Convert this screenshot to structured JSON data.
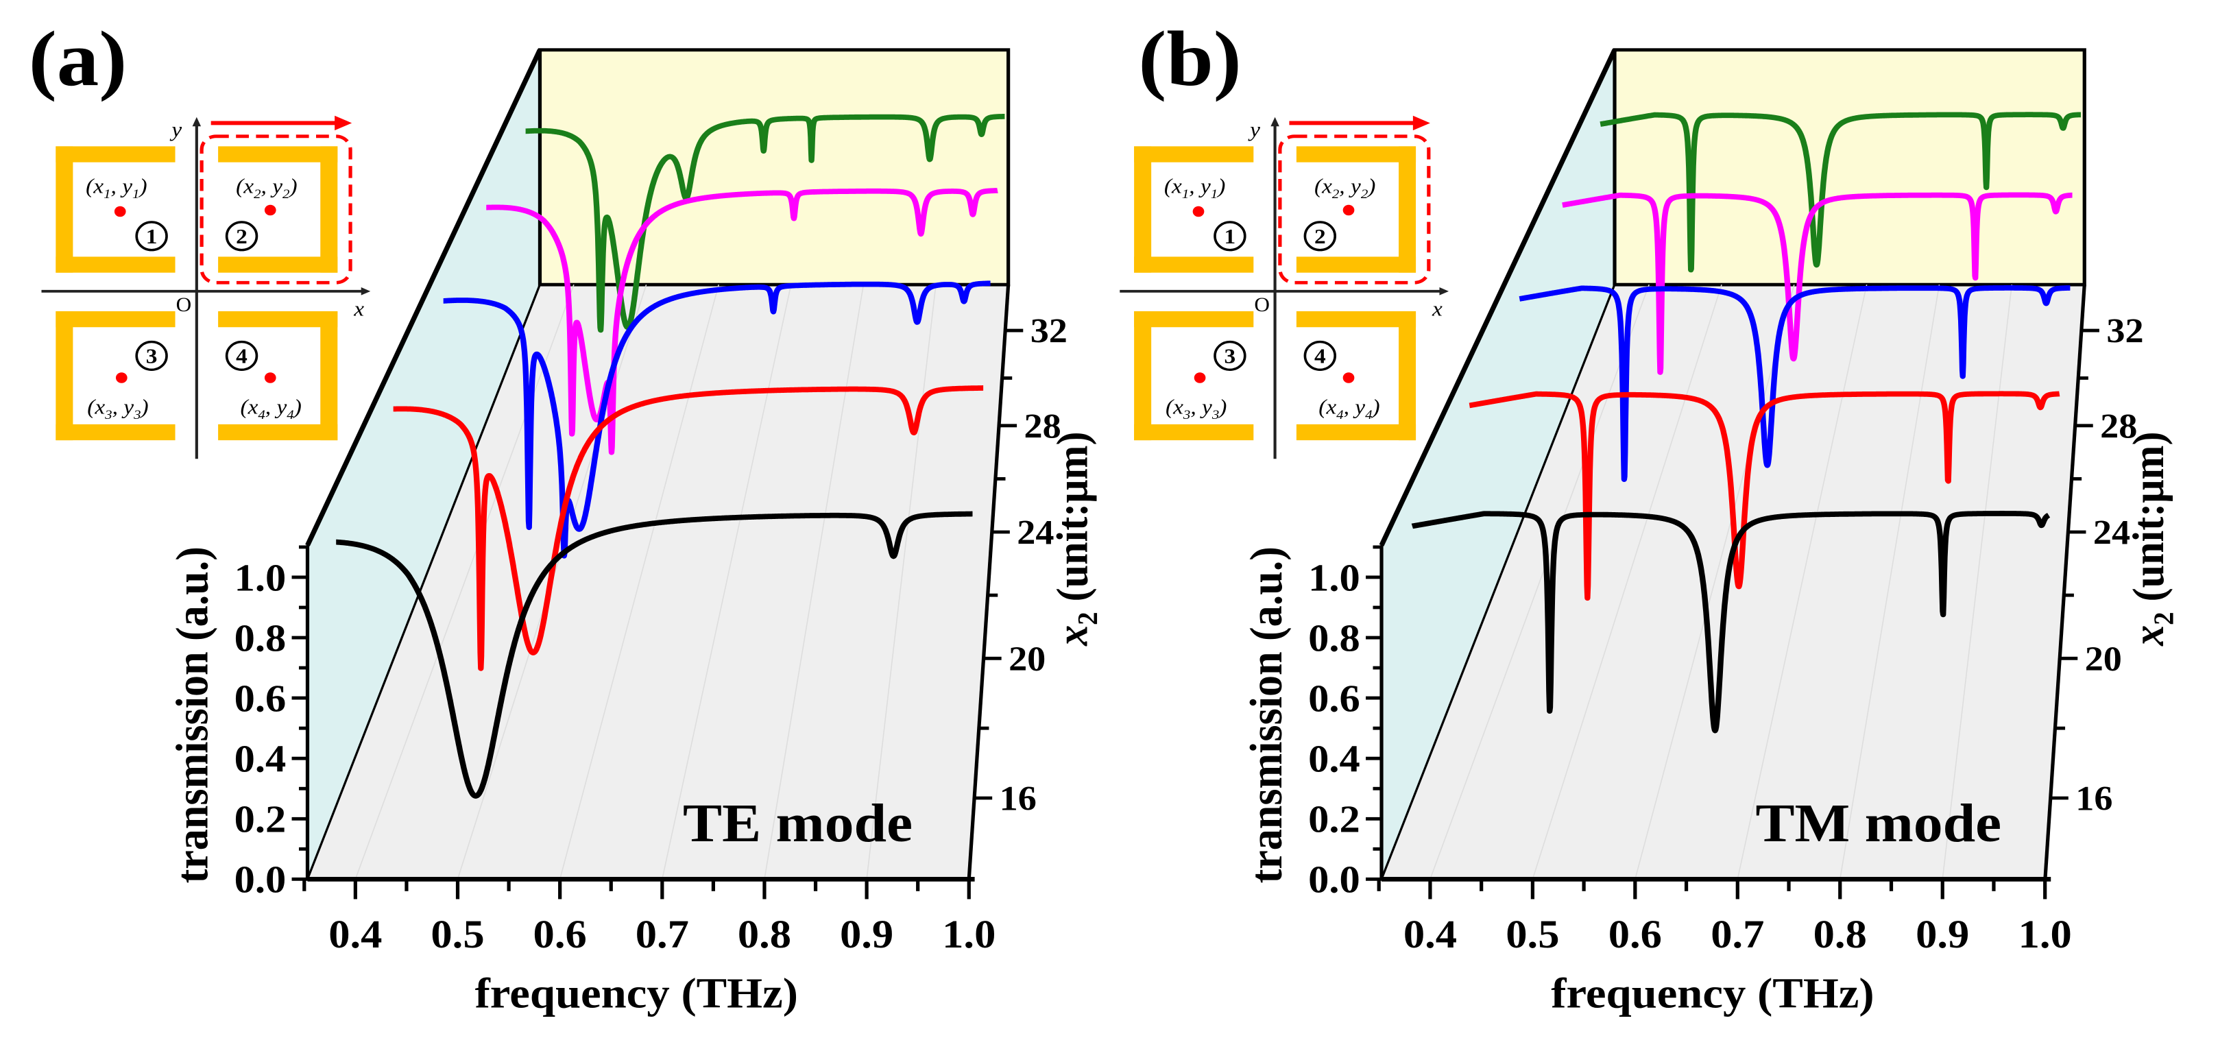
{
  "inset": {
    "axis_x": "x",
    "axis_y": "y",
    "origin": "O",
    "var_x": "x",
    "var_y": "y",
    "quadrants": [
      "1",
      "2",
      "3",
      "4"
    ],
    "colors": {
      "resonator": "#ffc000",
      "point": "#ff0000",
      "highlight": "#ff0000"
    }
  },
  "chart_data": [
    {
      "panel_label": "(a)",
      "type": "line",
      "mode_label": "TE mode",
      "xlabel": "frequency (THz)",
      "ylabel": "transmission (a.u.)",
      "zlabel": {
        "var": "x",
        "sub": "2",
        "unit": " (unit:μm)"
      },
      "xlim": [
        0.35,
        1.0
      ],
      "ylim": [
        0,
        1.1
      ],
      "xticks": [
        "0.4",
        "0.5",
        "0.6",
        "0.7",
        "0.8",
        "0.9",
        "1.0"
      ],
      "yticks": [
        "0.0",
        "0.2",
        "0.4",
        "0.6",
        "0.8",
        "1.0"
      ],
      "zticks": [
        "16",
        "20",
        "24",
        "28",
        "32"
      ],
      "series": [
        {
          "x2": 16,
          "color": "#000000",
          "f_range": [
            0.38,
            1.0
          ],
          "baseline": 1.22,
          "resonances": [
            {
              "f": 0.516,
              "T_min": 0.28,
              "width": 0.035
            },
            {
              "f": 0.923,
              "T_min": 1.08,
              "width": 0.006
            }
          ]
        },
        {
          "x2": 20,
          "color": "#ff0000",
          "f_range": [
            0.38,
            1.0
          ],
          "baseline": 1.22,
          "resonances": [
            {
              "f": 0.472,
              "T_min": 0.26,
              "width": 0.002
            },
            {
              "f": 0.527,
              "T_min": 0.27,
              "width": 0.03
            },
            {
              "f": 0.927,
              "T_min": 1.06,
              "width": 0.006
            }
          ]
        },
        {
          "x2": 24,
          "color": "#0000ff",
          "f_range": [
            0.38,
            1.0
          ],
          "baseline": 1.22,
          "resonances": [
            {
              "f": 0.477,
              "T_min": 0.32,
              "width": 0.002
            },
            {
              "f": 0.517,
              "T_min": 0.38,
              "width": 0.002
            },
            {
              "f": 0.534,
              "T_min": 0.27,
              "width": 0.028
            },
            {
              "f": 0.754,
              "T_min": 1.12,
              "width": 0.002
            },
            {
              "f": 0.917,
              "T_min": 1.07,
              "width": 0.005
            },
            {
              "f": 0.97,
              "T_min": 1.15,
              "width": 0.003
            }
          ]
        },
        {
          "x2": 28,
          "color": "#ff00ff",
          "f_range": [
            0.38,
            1.0
          ],
          "baseline": 1.22,
          "resonances": [
            {
              "f": 0.484,
              "T_min": 0.3,
              "width": 0.002
            },
            {
              "f": 0.514,
              "T_min": 0.27,
              "width": 0.025
            },
            {
              "f": 0.532,
              "T_min": 0.27,
              "width": 0.002
            },
            {
              "f": 0.753,
              "T_min": 1.11,
              "width": 0.002
            },
            {
              "f": 0.907,
              "T_min": 1.04,
              "width": 0.004
            },
            {
              "f": 0.97,
              "T_min": 1.12,
              "width": 0.003
            }
          ]
        },
        {
          "x2": 32,
          "color": "#1a7f1a",
          "f_range": [
            0.38,
            1.0
          ],
          "baseline": 1.22,
          "resonances": [
            {
              "f": 0.477,
              "T_min": 0.35,
              "width": 0.003
            },
            {
              "f": 0.512,
              "T_min": 0.29,
              "width": 0.022
            },
            {
              "f": 0.588,
              "T_min": 0.91,
              "width": 0.01
            },
            {
              "f": 0.688,
              "T_min": 1.08,
              "width": 0.002
            },
            {
              "f": 0.75,
              "T_min": 1.03,
              "width": 0.001
            },
            {
              "f": 0.903,
              "T_min": 1.03,
              "width": 0.004
            },
            {
              "f": 0.97,
              "T_min": 1.14,
              "width": 0.003
            }
          ]
        }
      ]
    },
    {
      "panel_label": "(b)",
      "type": "line",
      "mode_label": "TM mode",
      "xlabel": "frequency (THz)",
      "ylabel": "transmission (a.u.)",
      "zlabel": {
        "var": "x",
        "sub": "2",
        "unit": " (unit:μm)"
      },
      "xlim": [
        0.35,
        1.0
      ],
      "ylim": [
        0,
        1.1
      ],
      "xticks": [
        "0.4",
        "0.5",
        "0.6",
        "0.7",
        "0.8",
        "0.9",
        "1.0"
      ],
      "yticks": [
        "0.0",
        "0.2",
        "0.4",
        "0.6",
        "0.8",
        "1.0"
      ],
      "zticks": [
        "16",
        "20",
        "24",
        "28",
        "32"
      ],
      "series": [
        {
          "x2": 16,
          "color": "#000000",
          "f_range": [
            0.38,
            1.0
          ],
          "baseline": 1.21,
          "resonances": [
            {
              "f": 0.514,
              "T_min": 0.55,
              "width": 0.002
            },
            {
              "f": 0.675,
              "T_min": 0.49,
              "width": 0.008
            },
            {
              "f": 0.897,
              "T_min": 0.87,
              "width": 0.0015
            },
            {
              "f": 0.993,
              "T_min": 1.17,
              "width": 0.003
            }
          ]
        },
        {
          "x2": 20,
          "color": "#ff0000",
          "f_range": [
            0.38,
            1.0
          ],
          "baseline": 1.21,
          "resonances": [
            {
              "f": 0.504,
              "T_min": 0.48,
              "width": 0.002
            },
            {
              "f": 0.663,
              "T_min": 0.52,
              "width": 0.008
            },
            {
              "f": 0.883,
              "T_min": 0.89,
              "width": 0.0015
            },
            {
              "f": 0.98,
              "T_min": 1.16,
              "width": 0.003
            }
          ]
        },
        {
          "x2": 24,
          "color": "#0000ff",
          "f_range": [
            0.38,
            1.0
          ],
          "baseline": 1.21,
          "resonances": [
            {
              "f": 0.498,
              "T_min": 0.47,
              "width": 0.002
            },
            {
              "f": 0.659,
              "T_min": 0.53,
              "width": 0.008
            },
            {
              "f": 0.879,
              "T_min": 0.87,
              "width": 0.0015
            },
            {
              "f": 0.973,
              "T_min": 1.15,
              "width": 0.003
            }
          ]
        },
        {
          "x2": 28,
          "color": "#ff00ff",
          "f_range": [
            0.38,
            1.0
          ],
          "baseline": 1.21,
          "resonances": [
            {
              "f": 0.499,
              "T_min": 0.47,
              "width": 0.002
            },
            {
              "f": 0.661,
              "T_min": 0.53,
              "width": 0.008
            },
            {
              "f": 0.882,
              "T_min": 0.86,
              "width": 0.0015
            },
            {
              "f": 0.98,
              "T_min": 1.14,
              "width": 0.003
            }
          ]
        },
        {
          "x2": 32,
          "color": "#1a7f1a",
          "f_range": [
            0.38,
            1.0
          ],
          "baseline": 1.21,
          "resonances": [
            {
              "f": 0.497,
              "T_min": 0.52,
              "width": 0.002
            },
            {
              "f": 0.659,
              "T_min": 0.55,
              "width": 0.008
            },
            {
              "f": 0.878,
              "T_min": 0.89,
              "width": 0.0015
            },
            {
              "f": 0.977,
              "T_min": 1.15,
              "width": 0.003
            }
          ]
        }
      ]
    }
  ]
}
